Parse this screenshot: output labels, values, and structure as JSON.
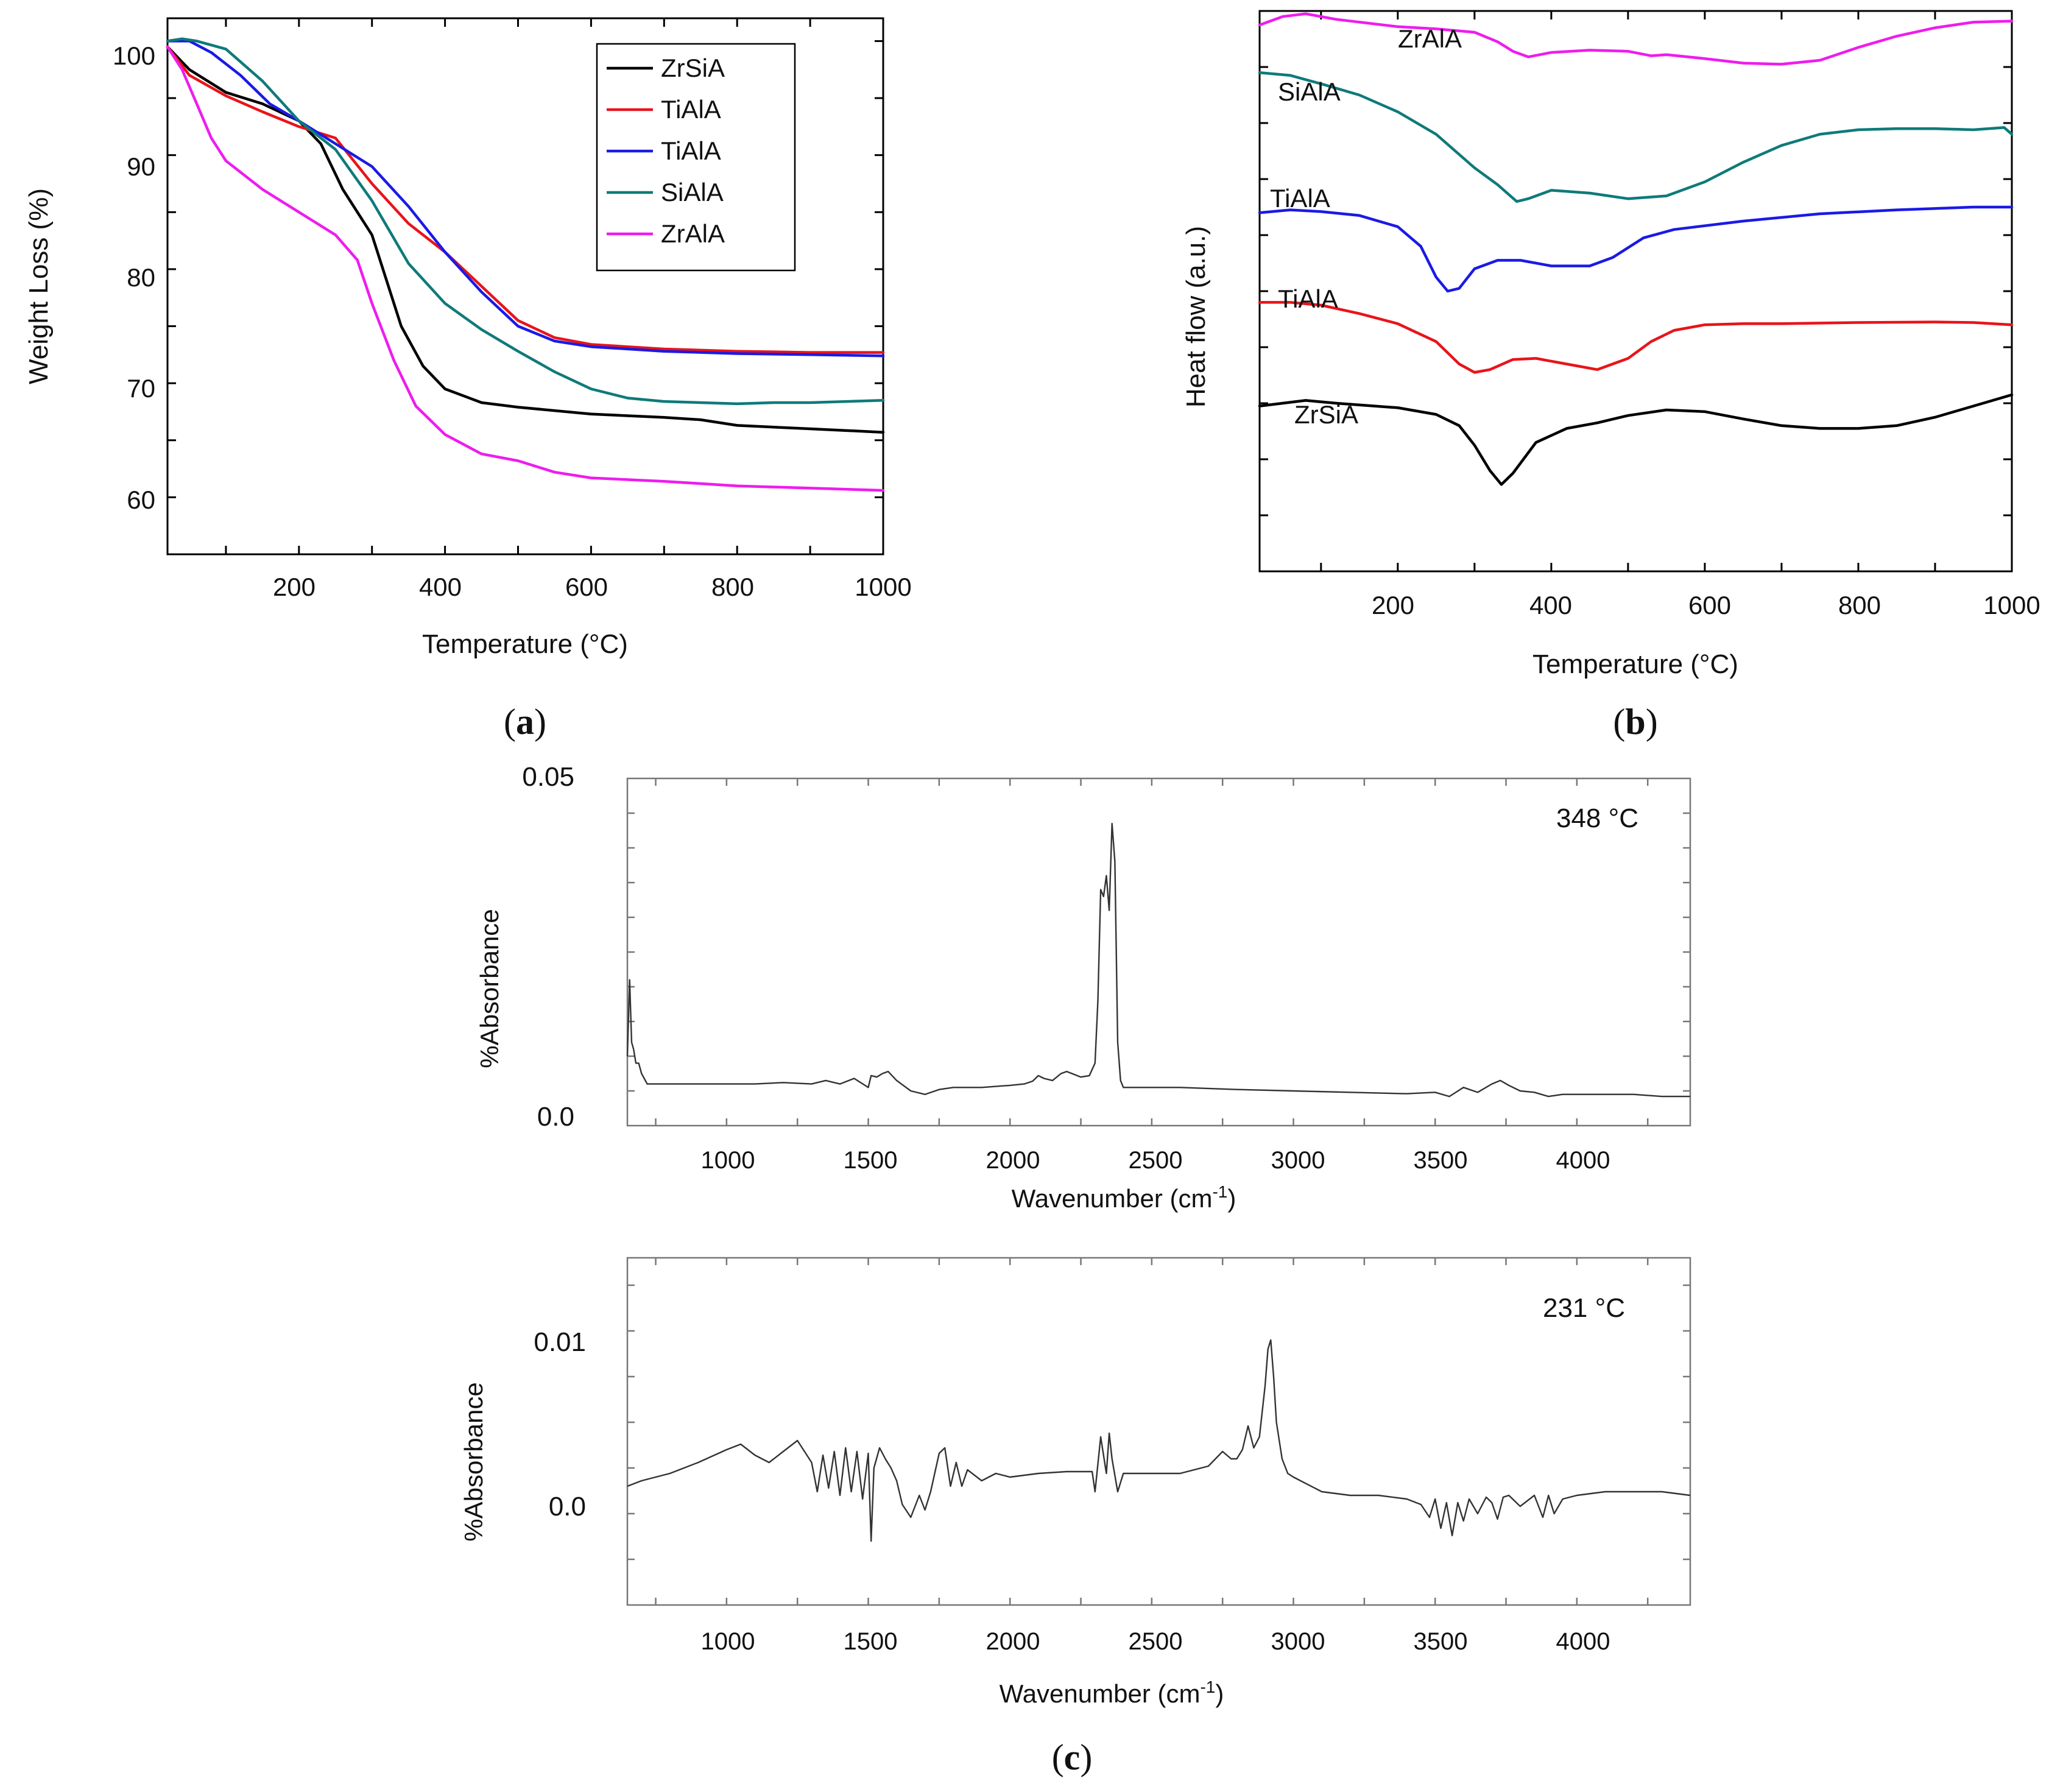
{
  "panel_labels": {
    "a": "a",
    "b": "b",
    "c": "c"
  },
  "chart_data": [
    {
      "id": "a",
      "type": "line",
      "title": "",
      "xlabel": "Temperature (°C)",
      "ylabel": "Weight Loss (%)",
      "xlim": [
        20,
        1000
      ],
      "ylim": [
        55,
        102
      ],
      "xticks": [
        200,
        400,
        600,
        800,
        1000
      ],
      "yticks": [
        60,
        70,
        80,
        90,
        100
      ],
      "legend_position": "top-right",
      "series": [
        {
          "name": "ZrSiA",
          "color": "#000000",
          "x": [
            20,
            50,
            100,
            150,
            200,
            230,
            260,
            300,
            340,
            370,
            400,
            450,
            500,
            600,
            700,
            750,
            800,
            900,
            1000
          ],
          "y": [
            99.5,
            97.5,
            95.5,
            94.5,
            93,
            91,
            87,
            83,
            75,
            71.5,
            69.5,
            68.3,
            67.9,
            67.3,
            67,
            66.8,
            66.3,
            66,
            65.7
          ]
        },
        {
          "name": "TiAlA",
          "color": "#e8141a",
          "x": [
            20,
            50,
            100,
            150,
            200,
            250,
            300,
            350,
            400,
            450,
            500,
            550,
            600,
            700,
            800,
            900,
            1000
          ],
          "y": [
            99.5,
            97,
            95.2,
            93.8,
            92.5,
            91.5,
            87.5,
            84,
            81.5,
            78.5,
            75.5,
            74,
            73.4,
            73,
            72.8,
            72.7,
            72.7
          ]
        },
        {
          "name": "TiAlA",
          "color": "#1a1ae6",
          "x": [
            20,
            50,
            80,
            120,
            160,
            200,
            250,
            300,
            350,
            400,
            450,
            500,
            550,
            600,
            700,
            800,
            900,
            1000
          ],
          "y": [
            100,
            100,
            99,
            97,
            94.5,
            93,
            91,
            89,
            85.5,
            81.5,
            78,
            75,
            73.7,
            73.2,
            72.8,
            72.6,
            72.5,
            72.4
          ]
        },
        {
          "name": "SiAlA",
          "color": "#0f7a7a",
          "x": [
            20,
            40,
            60,
            100,
            150,
            200,
            250,
            300,
            350,
            400,
            450,
            500,
            550,
            600,
            650,
            700,
            750,
            800,
            850,
            900,
            1000
          ],
          "y": [
            100,
            100.2,
            100,
            99.3,
            96.5,
            93,
            90.5,
            86,
            80.5,
            77,
            74.7,
            72.8,
            71,
            69.5,
            68.7,
            68.4,
            68.3,
            68.2,
            68.3,
            68.3,
            68.5
          ]
        },
        {
          "name": "ZrAlA",
          "color": "#ee1cee",
          "x": [
            20,
            40,
            60,
            80,
            100,
            150,
            200,
            250,
            280,
            300,
            330,
            360,
            400,
            450,
            500,
            550,
            600,
            700,
            800,
            900,
            1000
          ],
          "y": [
            99.5,
            97.5,
            94.5,
            91.5,
            89.5,
            87,
            85,
            83,
            80.8,
            77,
            72,
            68,
            65.5,
            63.8,
            63.2,
            62.2,
            61.7,
            61.4,
            61,
            60.8,
            60.6
          ]
        }
      ]
    },
    {
      "id": "b",
      "type": "line",
      "title": "",
      "xlabel": "Temperature (°C)",
      "ylabel": "Heat flow (a.u.)",
      "xlim": [
        20,
        1000
      ],
      "ylim": [
        0,
        10
      ],
      "xticks": [
        200,
        400,
        600,
        800,
        1000
      ],
      "yticks": [],
      "series": [
        {
          "name": "ZrAlA",
          "color": "#ee1cee",
          "x": [
            20,
            50,
            80,
            120,
            200,
            250,
            300,
            330,
            350,
            370,
            400,
            450,
            500,
            530,
            550,
            600,
            650,
            700,
            750,
            800,
            850,
            900,
            950,
            1000
          ],
          "y": [
            9.75,
            9.9,
            9.95,
            9.85,
            9.72,
            9.68,
            9.62,
            9.45,
            9.28,
            9.18,
            9.26,
            9.3,
            9.28,
            9.2,
            9.22,
            9.15,
            9.07,
            9.05,
            9.12,
            9.35,
            9.55,
            9.7,
            9.8,
            9.82
          ]
        },
        {
          "name": "SiAlA",
          "color": "#0f7a7a",
          "x": [
            20,
            60,
            100,
            150,
            200,
            250,
            300,
            330,
            355,
            370,
            400,
            450,
            500,
            550,
            600,
            650,
            700,
            750,
            800,
            850,
            900,
            950,
            990,
            1000
          ],
          "y": [
            8.9,
            8.85,
            8.7,
            8.5,
            8.2,
            7.8,
            7.2,
            6.9,
            6.6,
            6.65,
            6.8,
            6.75,
            6.65,
            6.7,
            6.95,
            7.3,
            7.6,
            7.8,
            7.88,
            7.9,
            7.9,
            7.88,
            7.92,
            7.8
          ]
        },
        {
          "name": "TiAlA",
          "color": "#1a1ae6",
          "x": [
            20,
            60,
            100,
            150,
            200,
            230,
            250,
            265,
            280,
            300,
            330,
            360,
            400,
            450,
            480,
            520,
            560,
            650,
            750,
            850,
            950,
            1000
          ],
          "y": [
            6.4,
            6.45,
            6.42,
            6.35,
            6.15,
            5.8,
            5.25,
            5.0,
            5.05,
            5.4,
            5.55,
            5.55,
            5.45,
            5.45,
            5.6,
            5.95,
            6.1,
            6.25,
            6.38,
            6.45,
            6.5,
            6.5
          ]
        },
        {
          "name": "TiAlA",
          "color": "#e8141a",
          "x": [
            20,
            60,
            100,
            150,
            200,
            250,
            280,
            300,
            320,
            350,
            380,
            420,
            460,
            500,
            530,
            560,
            600,
            650,
            700,
            800,
            900,
            950,
            1000
          ],
          "y": [
            4.8,
            4.8,
            4.75,
            4.6,
            4.42,
            4.1,
            3.7,
            3.55,
            3.6,
            3.78,
            3.8,
            3.7,
            3.6,
            3.8,
            4.1,
            4.3,
            4.4,
            4.42,
            4.42,
            4.44,
            4.45,
            4.44,
            4.4
          ]
        },
        {
          "name": "ZrSiA",
          "color": "#000000",
          "x": [
            20,
            50,
            80,
            120,
            200,
            250,
            280,
            300,
            320,
            335,
            350,
            380,
            420,
            460,
            500,
            550,
            600,
            650,
            700,
            750,
            800,
            850,
            900,
            950,
            1000
          ],
          "y": [
            2.95,
            3.0,
            3.05,
            3.0,
            2.92,
            2.8,
            2.6,
            2.25,
            1.8,
            1.55,
            1.75,
            2.3,
            2.55,
            2.65,
            2.78,
            2.88,
            2.85,
            2.72,
            2.6,
            2.55,
            2.55,
            2.6,
            2.75,
            2.95,
            3.15
          ]
        }
      ],
      "curve_labels": [
        "ZrAlA",
        "SiAlA",
        "TiAlA",
        "TiAlA",
        "ZrSiA"
      ]
    },
    {
      "id": "c-top",
      "type": "line",
      "title": "348 °C",
      "xlabel": "Wavenumber (cm-1)",
      "ylabel": "%Absorbance",
      "xlim": [
        650,
        4400
      ],
      "ylim": [
        0,
        0.05
      ],
      "xticks": [
        1000,
        1500,
        2000,
        2500,
        3000,
        3500,
        4000
      ],
      "ytick_labels": [
        "0.05",
        "0.0"
      ],
      "series": [
        {
          "name": "348 °C",
          "color": "#333333",
          "x": [
            650,
            658,
            665,
            672,
            680,
            690,
            700,
            720,
            760,
            800,
            900,
            1000,
            1100,
            1200,
            1300,
            1350,
            1400,
            1450,
            1500,
            1510,
            1530,
            1550,
            1570,
            1600,
            1650,
            1700,
            1750,
            1800,
            1900,
            2000,
            2050,
            2080,
            2100,
            2120,
            2150,
            2180,
            2200,
            2250,
            2280,
            2300,
            2310,
            2320,
            2330,
            2340,
            2350,
            2360,
            2370,
            2380,
            2390,
            2400,
            2450,
            2600,
            2800,
            3000,
            3200,
            3400,
            3500,
            3550,
            3600,
            3650,
            3700,
            3730,
            3760,
            3800,
            3850,
            3900,
            3950,
            4000,
            4100,
            4200,
            4300,
            4400
          ],
          "y": [
            0.01,
            0.021,
            0.012,
            0.011,
            0.009,
            0.009,
            0.0075,
            0.006,
            0.006,
            0.006,
            0.006,
            0.006,
            0.006,
            0.0062,
            0.006,
            0.0065,
            0.006,
            0.0068,
            0.0055,
            0.0072,
            0.007,
            0.0075,
            0.0078,
            0.0065,
            0.005,
            0.0045,
            0.0052,
            0.0055,
            0.0055,
            0.0058,
            0.006,
            0.0064,
            0.0072,
            0.0068,
            0.0065,
            0.0075,
            0.0078,
            0.007,
            0.0072,
            0.009,
            0.018,
            0.034,
            0.033,
            0.036,
            0.031,
            0.0435,
            0.038,
            0.012,
            0.0065,
            0.0055,
            0.0055,
            0.0055,
            0.0052,
            0.005,
            0.0048,
            0.0046,
            0.0048,
            0.0042,
            0.0055,
            0.0048,
            0.006,
            0.0065,
            0.0058,
            0.005,
            0.0048,
            0.0042,
            0.0045,
            0.0045,
            0.0045,
            0.0045,
            0.0042,
            0.0042
          ]
        }
      ]
    },
    {
      "id": "c-bottom",
      "type": "line",
      "title": "231 °C",
      "xlabel": "Wavenumber (cm-1)",
      "ylabel": "%Absorbance",
      "xlim": [
        650,
        4400
      ],
      "ylim": [
        -0.005,
        0.014
      ],
      "xticks": [
        1000,
        1500,
        2000,
        2500,
        3000,
        3500,
        4000
      ],
      "ytick_labels": [
        "0.01",
        "0.0"
      ],
      "series": [
        {
          "name": "231 °C",
          "color": "#333333",
          "x": [
            650,
            700,
            800,
            900,
            1000,
            1050,
            1100,
            1150,
            1200,
            1250,
            1300,
            1320,
            1340,
            1360,
            1380,
            1400,
            1420,
            1440,
            1460,
            1480,
            1500,
            1510,
            1520,
            1540,
            1560,
            1580,
            1600,
            1620,
            1650,
            1680,
            1700,
            1720,
            1750,
            1770,
            1790,
            1810,
            1830,
            1850,
            1900,
            1950,
            2000,
            2100,
            2200,
            2290,
            2300,
            2320,
            2340,
            2350,
            2360,
            2380,
            2400,
            2500,
            2600,
            2700,
            2750,
            2780,
            2800,
            2820,
            2840,
            2860,
            2880,
            2900,
            2910,
            2920,
            2930,
            2940,
            2960,
            2980,
            3000,
            3100,
            3200,
            3300,
            3400,
            3450,
            3480,
            3500,
            3520,
            3540,
            3560,
            3580,
            3600,
            3620,
            3650,
            3680,
            3700,
            3720,
            3740,
            3760,
            3800,
            3850,
            3880,
            3900,
            3920,
            3950,
            4000,
            4100,
            4200,
            4300,
            4400
          ],
          "y": [
            0.0015,
            0.0018,
            0.0022,
            0.0028,
            0.0035,
            0.0038,
            0.0032,
            0.0028,
            0.0034,
            0.004,
            0.0028,
            0.0012,
            0.0032,
            0.0014,
            0.0034,
            0.001,
            0.0036,
            0.0012,
            0.0034,
            0.0008,
            0.0033,
            -0.0015,
            0.0025,
            0.0036,
            0.003,
            0.0025,
            0.0018,
            0.0005,
            -0.0002,
            0.001,
            0.0002,
            0.0012,
            0.0033,
            0.0036,
            0.0015,
            0.0028,
            0.0015,
            0.0024,
            0.0018,
            0.0022,
            0.002,
            0.0022,
            0.0023,
            0.0023,
            0.0012,
            0.0042,
            0.0022,
            0.0044,
            0.003,
            0.0012,
            0.0022,
            0.0022,
            0.0022,
            0.0026,
            0.0034,
            0.003,
            0.003,
            0.0035,
            0.0048,
            0.0036,
            0.0042,
            0.007,
            0.009,
            0.0095,
            0.0075,
            0.005,
            0.003,
            0.0022,
            0.002,
            0.0012,
            0.001,
            0.001,
            0.0008,
            0.0005,
            -0.0002,
            0.0008,
            -0.0008,
            0.0006,
            -0.0012,
            0.0006,
            -0.0004,
            0.0008,
            0.0,
            0.0009,
            0.0006,
            -0.0003,
            0.0009,
            0.001,
            0.0004,
            0.001,
            -0.0002,
            0.001,
            0.0,
            0.0008,
            0.001,
            0.0012,
            0.0012,
            0.0012,
            0.001
          ]
        }
      ]
    }
  ]
}
